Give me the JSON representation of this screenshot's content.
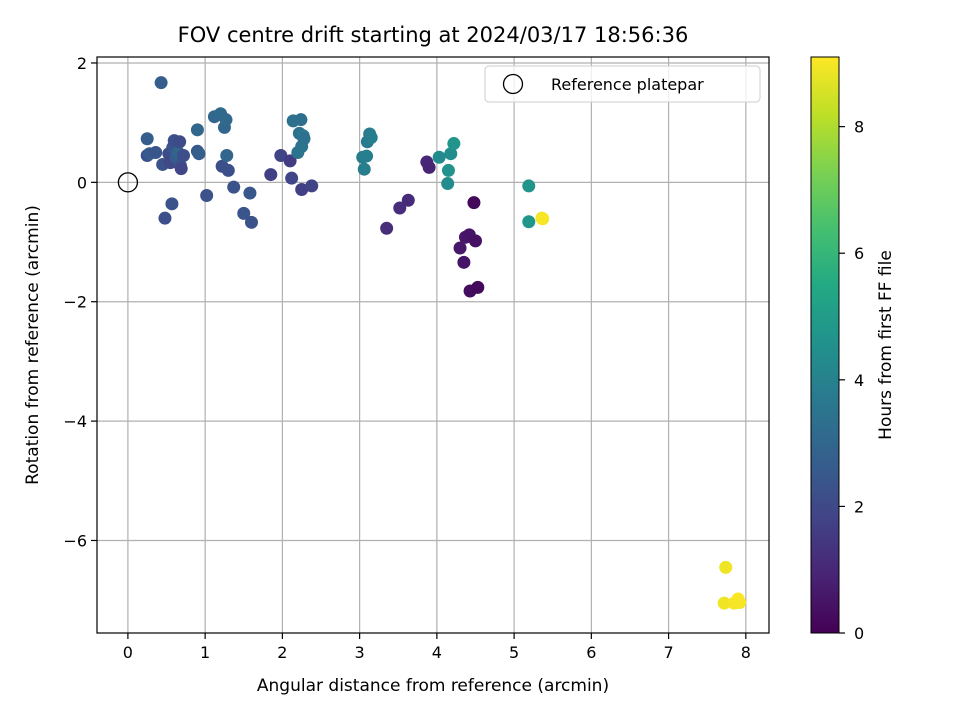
{
  "chart_data": {
    "type": "scatter",
    "title": "FOV centre drift starting at 2024/03/17 18:56:36",
    "xlabel": "Angular distance from reference (arcmin)",
    "ylabel": "Rotation from reference (arcmin)",
    "xlim": [
      -0.4,
      8.3
    ],
    "ylim": [
      -7.55,
      2.1
    ],
    "xticks": [
      0,
      1,
      2,
      3,
      4,
      5,
      6,
      7,
      8
    ],
    "yticks": [
      -6,
      -4,
      -2,
      0,
      2
    ],
    "grid": true,
    "legend": {
      "placement": "top-right",
      "entries": [
        {
          "label": "Reference platepar",
          "marker": "hollow-circle"
        }
      ]
    },
    "reference_point": {
      "x": 0,
      "y": 0
    },
    "colorbar": {
      "label": "Hours from first FF file",
      "colormap": "viridis",
      "range": [
        0,
        9.1
      ],
      "ticks": [
        0,
        2,
        4,
        6,
        8
      ]
    },
    "points": [
      {
        "x": 0.25,
        "y": 0.45,
        "hours": 2.2
      },
      {
        "x": 0.28,
        "y": 0.48,
        "hours": 2.6
      },
      {
        "x": 0.25,
        "y": 0.73,
        "hours": 2.7
      },
      {
        "x": 0.36,
        "y": 0.5,
        "hours": 2.4
      },
      {
        "x": 0.43,
        "y": 1.67,
        "hours": 2.7
      },
      {
        "x": 0.45,
        "y": 0.3,
        "hours": 2.3
      },
      {
        "x": 0.48,
        "y": -0.6,
        "hours": 2.2
      },
      {
        "x": 0.53,
        "y": 0.48,
        "hours": 2.1
      },
      {
        "x": 0.55,
        "y": 0.33,
        "hours": 2.0
      },
      {
        "x": 0.57,
        "y": -0.36,
        "hours": 2.3
      },
      {
        "x": 0.58,
        "y": 0.58,
        "hours": 2.4
      },
      {
        "x": 0.6,
        "y": 0.7,
        "hours": 2.2
      },
      {
        "x": 0.62,
        "y": 0.42,
        "hours": 2.6
      },
      {
        "x": 0.65,
        "y": 0.5,
        "hours": 2.9
      },
      {
        "x": 0.67,
        "y": 0.68,
        "hours": 2.1
      },
      {
        "x": 0.68,
        "y": 0.28,
        "hours": 2.4
      },
      {
        "x": 0.69,
        "y": 0.23,
        "hours": 1.9
      },
      {
        "x": 0.72,
        "y": 0.45,
        "hours": 2.2
      },
      {
        "x": 0.9,
        "y": 0.88,
        "hours": 3.0
      },
      {
        "x": 0.9,
        "y": 0.52,
        "hours": 2.5
      },
      {
        "x": 0.92,
        "y": 0.48,
        "hours": 2.7
      },
      {
        "x": 1.02,
        "y": -0.22,
        "hours": 2.3
      },
      {
        "x": 1.12,
        "y": 1.1,
        "hours": 3.0
      },
      {
        "x": 1.2,
        "y": 1.15,
        "hours": 3.1
      },
      {
        "x": 1.22,
        "y": 0.27,
        "hours": 2.2
      },
      {
        "x": 1.25,
        "y": 0.92,
        "hours": 3.0
      },
      {
        "x": 1.27,
        "y": 1.05,
        "hours": 3.1
      },
      {
        "x": 1.28,
        "y": 0.45,
        "hours": 3.0
      },
      {
        "x": 1.3,
        "y": 0.2,
        "hours": 2.2
      },
      {
        "x": 1.37,
        "y": -0.08,
        "hours": 2.3
      },
      {
        "x": 1.5,
        "y": -0.52,
        "hours": 2.4
      },
      {
        "x": 1.58,
        "y": -0.18,
        "hours": 2.5
      },
      {
        "x": 1.6,
        "y": -0.67,
        "hours": 2.3
      },
      {
        "x": 1.85,
        "y": 0.13,
        "hours": 1.7
      },
      {
        "x": 1.98,
        "y": 0.45,
        "hours": 1.8
      },
      {
        "x": 2.1,
        "y": 0.36,
        "hours": 1.6
      },
      {
        "x": 2.12,
        "y": 0.07,
        "hours": 1.9
      },
      {
        "x": 2.14,
        "y": 1.03,
        "hours": 3.4
      },
      {
        "x": 2.2,
        "y": 0.5,
        "hours": 3.5
      },
      {
        "x": 2.22,
        "y": 0.82,
        "hours": 3.4
      },
      {
        "x": 2.24,
        "y": 1.05,
        "hours": 3.3
      },
      {
        "x": 2.25,
        "y": 0.6,
        "hours": 3.5
      },
      {
        "x": 2.27,
        "y": 0.78,
        "hours": 3.6
      },
      {
        "x": 2.28,
        "y": 0.73,
        "hours": 3.4
      },
      {
        "x": 2.25,
        "y": -0.12,
        "hours": 1.7
      },
      {
        "x": 2.38,
        "y": -0.06,
        "hours": 1.8
      },
      {
        "x": 3.04,
        "y": 0.42,
        "hours": 3.8
      },
      {
        "x": 3.06,
        "y": 0.22,
        "hours": 3.9
      },
      {
        "x": 3.09,
        "y": 0.44,
        "hours": 3.9
      },
      {
        "x": 3.1,
        "y": 0.68,
        "hours": 3.7
      },
      {
        "x": 3.13,
        "y": 0.81,
        "hours": 3.8
      },
      {
        "x": 3.15,
        "y": 0.75,
        "hours": 3.9
      },
      {
        "x": 3.35,
        "y": -0.77,
        "hours": 1.2
      },
      {
        "x": 3.52,
        "y": -0.43,
        "hours": 1.2
      },
      {
        "x": 3.63,
        "y": -0.3,
        "hours": 1.1
      },
      {
        "x": 3.87,
        "y": 0.34,
        "hours": 1.0
      },
      {
        "x": 3.9,
        "y": 0.25,
        "hours": 0.9
      },
      {
        "x": 4.03,
        "y": 0.42,
        "hours": 4.3
      },
      {
        "x": 4.14,
        "y": -0.02,
        "hours": 4.4
      },
      {
        "x": 4.15,
        "y": 0.2,
        "hours": 4.6
      },
      {
        "x": 4.18,
        "y": 0.48,
        "hours": 4.4
      },
      {
        "x": 4.22,
        "y": 0.65,
        "hours": 4.7
      },
      {
        "x": 4.3,
        "y": -1.1,
        "hours": 0.6
      },
      {
        "x": 4.35,
        "y": -1.34,
        "hours": 0.5
      },
      {
        "x": 4.37,
        "y": -0.92,
        "hours": 0.6
      },
      {
        "x": 4.42,
        "y": -0.88,
        "hours": 0.5
      },
      {
        "x": 4.43,
        "y": -1.82,
        "hours": 0.3
      },
      {
        "x": 4.48,
        "y": -0.34,
        "hours": 0.2
      },
      {
        "x": 4.5,
        "y": -0.98,
        "hours": 0.4
      },
      {
        "x": 4.53,
        "y": -1.76,
        "hours": 0.2
      },
      {
        "x": 5.19,
        "y": -0.06,
        "hours": 4.7
      },
      {
        "x": 5.19,
        "y": -0.66,
        "hours": 4.8
      },
      {
        "x": 5.36,
        "y": -0.6,
        "hours": 8.9
      },
      {
        "x": 5.37,
        "y": -0.61,
        "hours": 9.0
      },
      {
        "x": 7.74,
        "y": -6.45,
        "hours": 8.9
      },
      {
        "x": 7.72,
        "y": -7.05,
        "hours": 8.9
      },
      {
        "x": 7.85,
        "y": -7.05,
        "hours": 9.0
      },
      {
        "x": 7.9,
        "y": -6.98,
        "hours": 9.1
      },
      {
        "x": 7.92,
        "y": -7.04,
        "hours": 9.0
      }
    ]
  }
}
